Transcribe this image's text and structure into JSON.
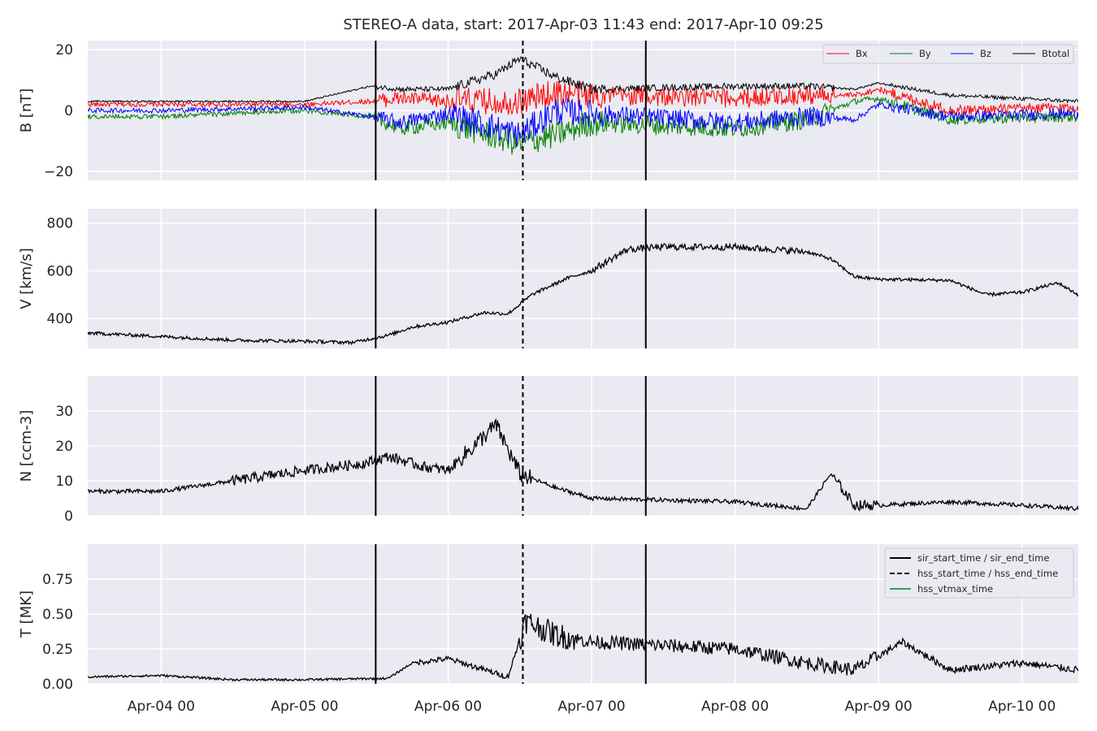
{
  "figure": {
    "title": "STEREO-A data, start: 2017-Apr-03 11:43  end: 2017-Apr-10 09:25",
    "background_color": "#eaeaf2",
    "grid_color": "#ffffff"
  },
  "chart_data": [
    {
      "type": "line",
      "ylabel": "B [nT]",
      "ylim": [
        -23,
        23
      ],
      "yticks": [
        20,
        0,
        -20
      ],
      "ytick_labels": [
        "20",
        "0",
        "−20"
      ],
      "legend_placement": "top-right",
      "series": [
        {
          "name": "Bx",
          "color": "#ff0000",
          "x": [
            "2017-04-03 11:43",
            "2017-04-04 00:00",
            "2017-04-05 00:00",
            "2017-04-05 11:00",
            "2017-04-05 16:00",
            "2017-04-06 00:00",
            "2017-04-06 12:00",
            "2017-04-06 18:00",
            "2017-04-07 00:00",
            "2017-04-08 00:00",
            "2017-04-08 12:00",
            "2017-04-08 20:00",
            "2017-04-09 00:00",
            "2017-04-09 12:00",
            "2017-04-10 09:25"
          ],
          "values": [
            2,
            2,
            2,
            3,
            4,
            3,
            3,
            6,
            5,
            4,
            5,
            5,
            7,
            0,
            1
          ]
        },
        {
          "name": "By",
          "color": "#008000",
          "x": [
            "2017-04-03 11:43",
            "2017-04-04 00:00",
            "2017-04-05 00:00",
            "2017-04-05 11:00",
            "2017-04-05 16:00",
            "2017-04-06 00:00",
            "2017-04-06 12:00",
            "2017-04-06 18:00",
            "2017-04-07 00:00",
            "2017-04-08 00:00",
            "2017-04-08 12:00",
            "2017-04-08 20:00",
            "2017-04-09 00:00",
            "2017-04-09 12:00",
            "2017-04-10 09:25"
          ],
          "values": [
            -2,
            -2,
            0,
            -2,
            -6,
            -4,
            -11,
            -8,
            -4,
            -6,
            -3,
            3,
            4,
            -3,
            -2
          ]
        },
        {
          "name": "Bz",
          "color": "#0000ff",
          "x": [
            "2017-04-03 11:43",
            "2017-04-04 00:00",
            "2017-04-05 00:00",
            "2017-04-05 11:00",
            "2017-04-05 16:00",
            "2017-04-06 00:00",
            "2017-04-06 12:00",
            "2017-04-06 18:00",
            "2017-04-07 00:00",
            "2017-04-08 00:00",
            "2017-04-08 12:00",
            "2017-04-08 20:00",
            "2017-04-09 00:00",
            "2017-04-09 12:00",
            "2017-04-10 09:25"
          ],
          "values": [
            0,
            0,
            1,
            -2,
            -4,
            -1,
            -8,
            0,
            -1,
            -4,
            -2,
            -3,
            2,
            -2,
            -1
          ]
        },
        {
          "name": "Btotal",
          "color": "#000000",
          "x": [
            "2017-04-03 11:43",
            "2017-04-04 00:00",
            "2017-04-05 00:00",
            "2017-04-05 11:00",
            "2017-04-05 16:00",
            "2017-04-06 00:00",
            "2017-04-06 08:00",
            "2017-04-06 12:00",
            "2017-04-06 18:00",
            "2017-04-07 00:00",
            "2017-04-08 00:00",
            "2017-04-08 12:00",
            "2017-04-08 20:00",
            "2017-04-09 00:00",
            "2017-04-09 12:00",
            "2017-04-10 09:25"
          ],
          "values": [
            3,
            3,
            3,
            8,
            7,
            7,
            12,
            17,
            11,
            7,
            8,
            8,
            7,
            9,
            5,
            3
          ]
        }
      ]
    },
    {
      "type": "line",
      "ylabel": "V [km/s]",
      "ylim": [
        275,
        860
      ],
      "yticks": [
        800,
        600,
        400
      ],
      "ytick_labels": [
        "800",
        "600",
        "400"
      ],
      "series": [
        {
          "color": "#000000",
          "x": [
            "2017-04-03 11:43",
            "2017-04-04 00:00",
            "2017-04-04 12:00",
            "2017-04-05 00:00",
            "2017-04-05 08:00",
            "2017-04-05 14:00",
            "2017-04-05 18:00",
            "2017-04-06 00:00",
            "2017-04-06 06:00",
            "2017-04-06 10:00",
            "2017-04-06 14:00",
            "2017-04-06 20:00",
            "2017-04-07 00:00",
            "2017-04-07 06:00",
            "2017-04-07 12:00",
            "2017-04-08 00:00",
            "2017-04-08 12:00",
            "2017-04-08 16:00",
            "2017-04-08 20:00",
            "2017-04-09 00:00",
            "2017-04-09 12:00",
            "2017-04-09 18:00",
            "2017-04-10 00:00",
            "2017-04-10 06:00",
            "2017-04-10 09:25"
          ],
          "values": [
            340,
            325,
            310,
            305,
            300,
            330,
            365,
            385,
            425,
            420,
            500,
            570,
            600,
            690,
            700,
            700,
            680,
            650,
            575,
            565,
            560,
            500,
            510,
            550,
            500
          ]
        }
      ]
    },
    {
      "type": "line",
      "ylabel": "N [ccm-3]",
      "ylim": [
        0,
        40
      ],
      "yticks": [
        30,
        20,
        10,
        0
      ],
      "ytick_labels": [
        "30",
        "20",
        "10",
        "0"
      ],
      "series": [
        {
          "color": "#000000",
          "x": [
            "2017-04-03 11:43",
            "2017-04-04 00:00",
            "2017-04-04 12:00",
            "2017-04-05 00:00",
            "2017-04-05 10:00",
            "2017-04-05 14:00",
            "2017-04-05 20:00",
            "2017-04-06 00:00",
            "2017-04-06 08:00",
            "2017-04-06 12:00",
            "2017-04-06 18:00",
            "2017-04-07 00:00",
            "2017-04-08 00:00",
            "2017-04-08 12:00",
            "2017-04-08 16:00",
            "2017-04-08 20:00",
            "2017-04-09 00:00",
            "2017-04-09 12:00",
            "2017-04-10 00:00",
            "2017-04-10 09:25"
          ],
          "values": [
            7,
            7,
            10,
            13,
            15,
            17,
            14,
            13,
            26,
            12,
            8,
            5,
            4,
            2,
            12,
            3,
            3,
            4,
            3,
            2
          ]
        }
      ]
    },
    {
      "type": "line",
      "ylabel": "T [MK]",
      "ylim": [
        0,
        1
      ],
      "yticks": [
        0.75,
        0.5,
        0.25,
        0.0
      ],
      "ytick_labels": [
        "0.75",
        "0.50",
        "0.25",
        "0.00"
      ],
      "legend_placement": "top-right",
      "series": [
        {
          "color": "#000000",
          "x": [
            "2017-04-03 11:43",
            "2017-04-04 00:00",
            "2017-04-04 12:00",
            "2017-04-05 00:00",
            "2017-04-05 14:00",
            "2017-04-05 18:00",
            "2017-04-06 00:00",
            "2017-04-06 10:00",
            "2017-04-06 13:00",
            "2017-04-06 18:00",
            "2017-04-07 00:00",
            "2017-04-08 00:00",
            "2017-04-08 12:00",
            "2017-04-08 20:00",
            "2017-04-09 04:00",
            "2017-04-09 12:00",
            "2017-04-10 00:00",
            "2017-04-10 09:25"
          ],
          "values": [
            0.05,
            0.06,
            0.03,
            0.03,
            0.04,
            0.15,
            0.18,
            0.05,
            0.45,
            0.35,
            0.3,
            0.25,
            0.15,
            0.1,
            0.3,
            0.1,
            0.15,
            0.1
          ]
        }
      ]
    }
  ],
  "x_axis": {
    "range": [
      "2017-04-03 11:43",
      "2017-04-10 09:25"
    ],
    "ticks": [
      "2017-04-04 00:00",
      "2017-04-05 00:00",
      "2017-04-06 00:00",
      "2017-04-07 00:00",
      "2017-04-08 00:00",
      "2017-04-09 00:00",
      "2017-04-10 00:00"
    ],
    "tick_labels": [
      "Apr-04 00",
      "Apr-05 00",
      "Apr-06 00",
      "Apr-07 00",
      "Apr-08 00",
      "Apr-09 00",
      "Apr-10 00"
    ]
  },
  "markers": {
    "sir_times": [
      "2017-04-05 11:53",
      "2017-04-07 09:04"
    ],
    "hss_times": [
      "2017-04-06 12:30"
    ],
    "hss_vtmax_color": "#2ca25f"
  },
  "legend_b": [
    "Bx",
    "By",
    "Bz",
    "Btotal"
  ],
  "legend_t": [
    "sir_start_time / sir_end_time",
    "hss_start_time / hss_end_time",
    "hss_vtmax_time"
  ]
}
